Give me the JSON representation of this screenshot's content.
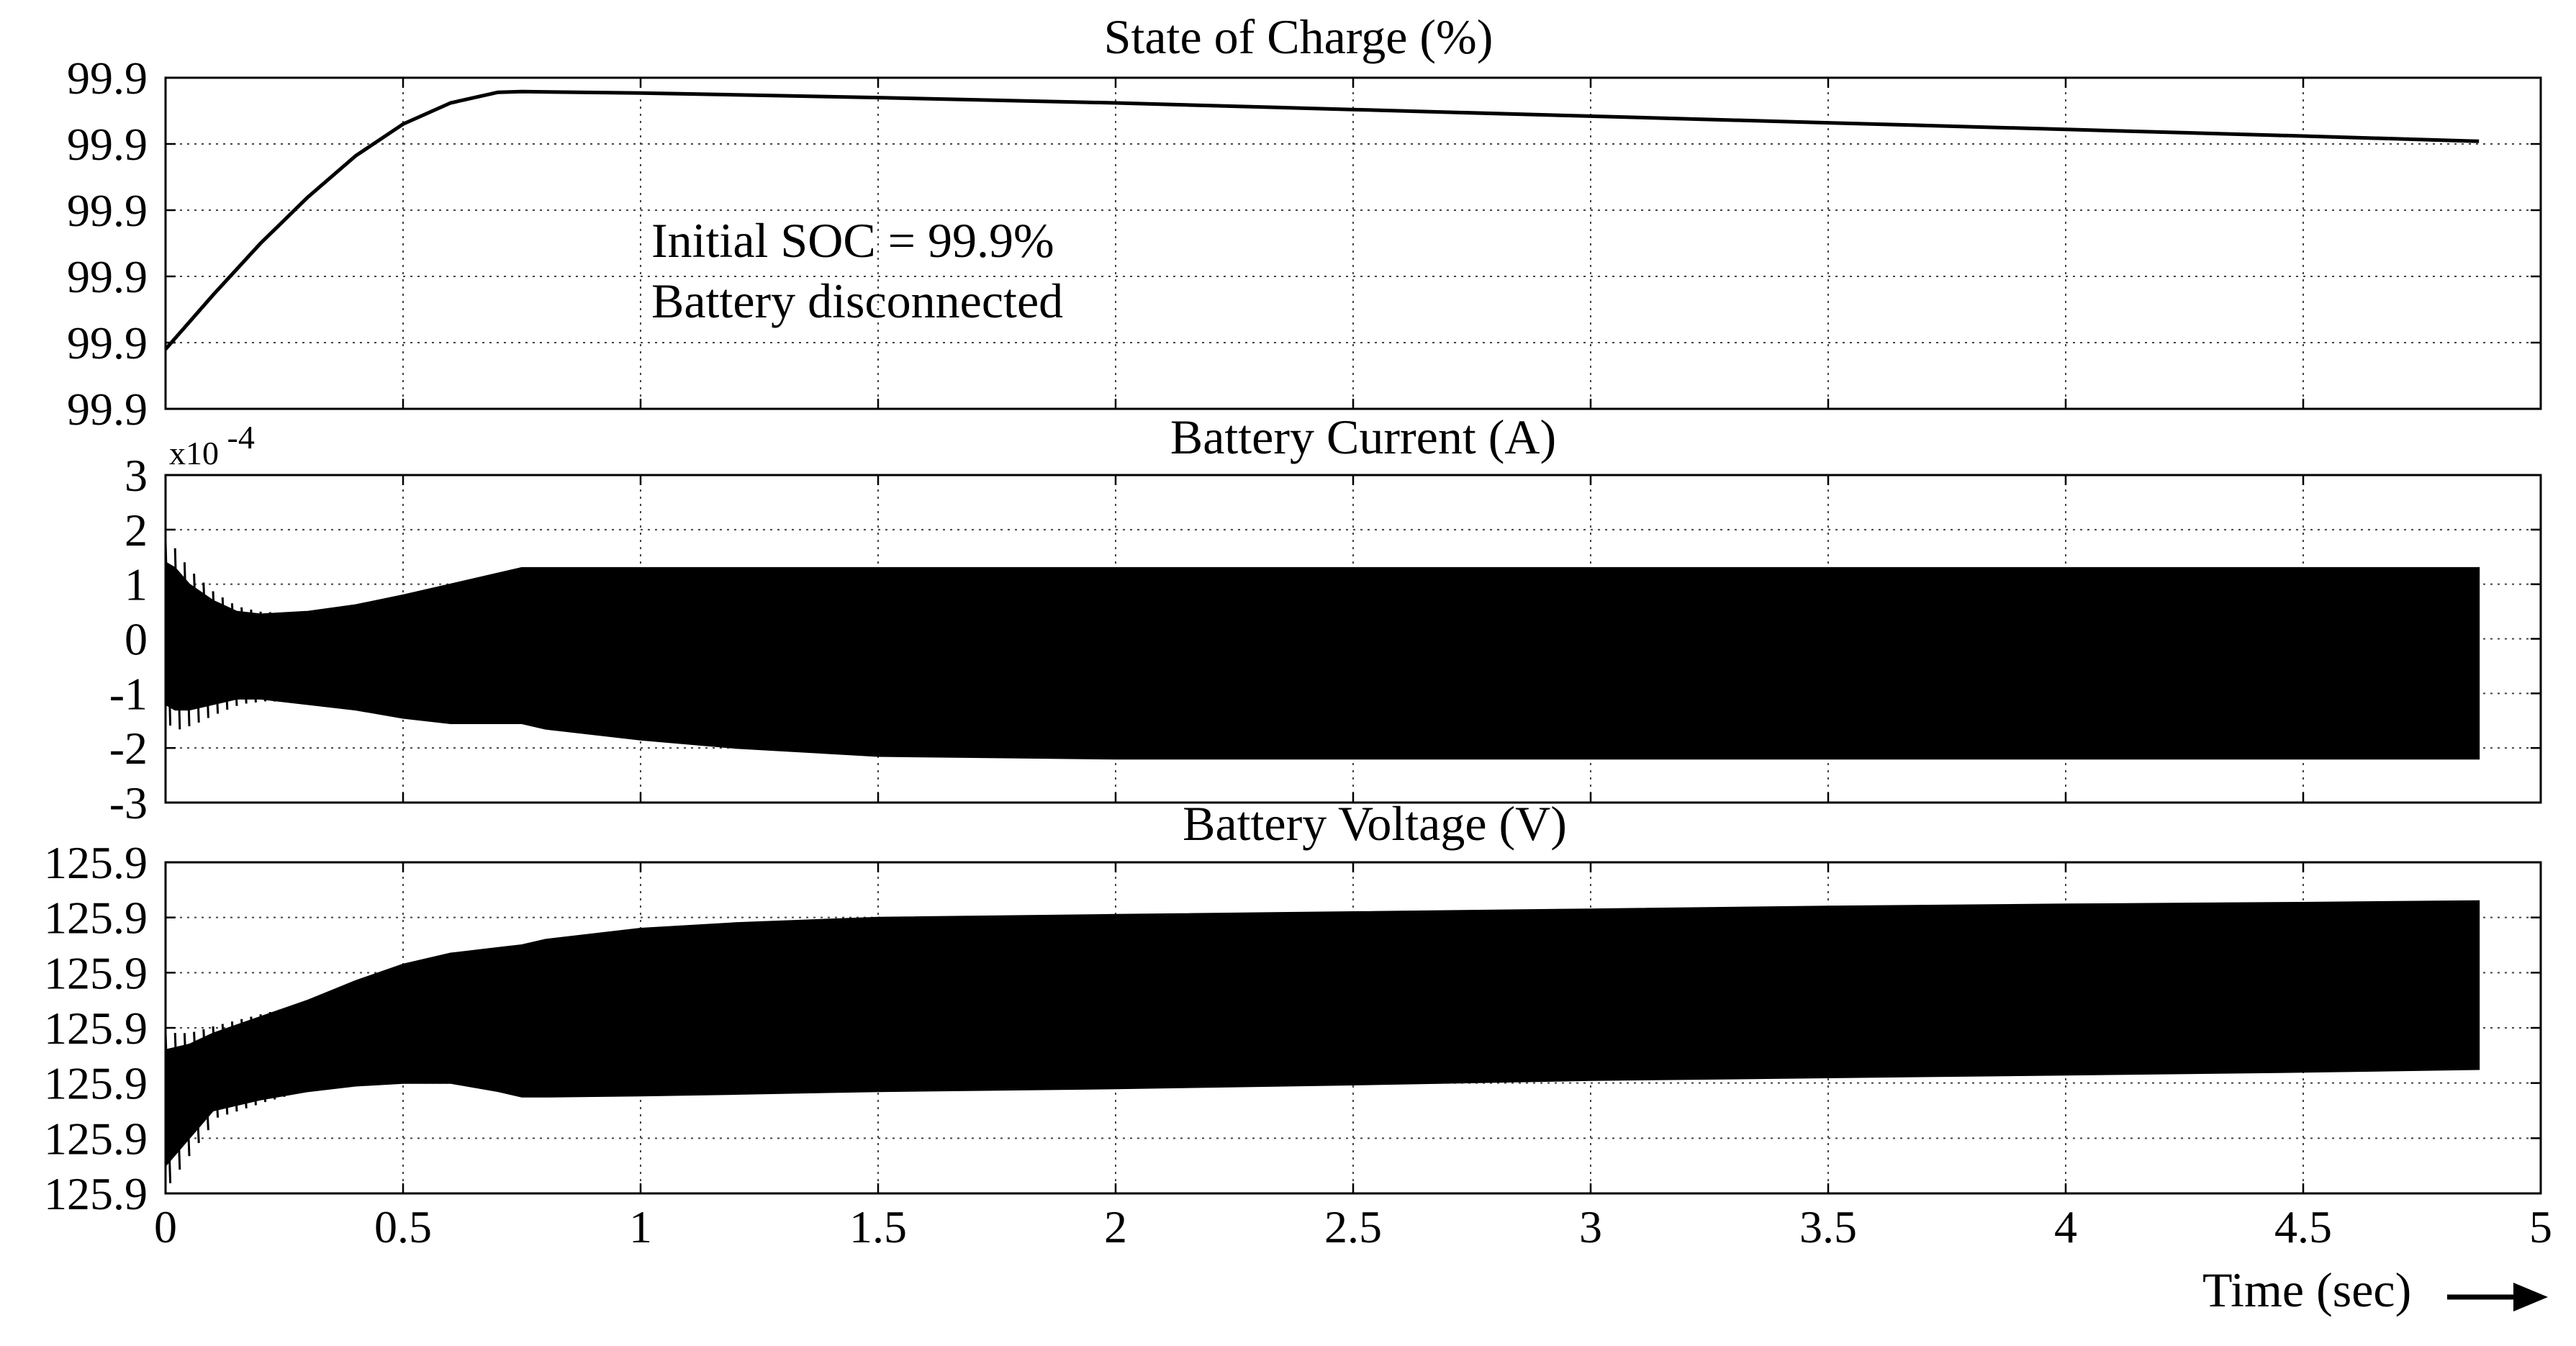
{
  "figure": {
    "xlabel": "Time (sec)",
    "arrow_icon": "right-arrow-icon",
    "xticks": [
      "0",
      "0.5",
      "1",
      "1.5",
      "2",
      "2.5",
      "3",
      "3.5",
      "4",
      "4.5",
      "5"
    ],
    "line_color": "#000000",
    "grid": "dotted"
  },
  "chart_data": [
    {
      "type": "line",
      "title": "State of Charge (%)",
      "xlabel": "Time (sec)",
      "ylabel": "",
      "xlim": [
        0,
        5
      ],
      "ylim": [
        0,
        5
      ],
      "ytick_labels": [
        "99.9",
        "99.9",
        "99.9",
        "99.9",
        "99.9",
        "99.9"
      ],
      "grid": true,
      "annotations": [
        "Initial SOC = 99.9%",
        "Battery disconnected"
      ],
      "series": [
        {
          "x": [
            0,
            0.1,
            0.2,
            0.3,
            0.4,
            0.5,
            0.6,
            0.7,
            0.75,
            1.0,
            1.5,
            2.0,
            2.5,
            3.0,
            3.5,
            4.0,
            4.5,
            4.87
          ],
          "y": [
            0.9,
            1.72,
            2.5,
            3.2,
            3.82,
            4.3,
            4.62,
            4.78,
            4.79,
            4.77,
            4.7,
            4.62,
            4.52,
            4.42,
            4.32,
            4.22,
            4.12,
            4.04
          ],
          "style": "line"
        }
      ]
    },
    {
      "type": "area",
      "title": "Battery Current (A)",
      "xlabel": "Time (sec)",
      "ylabel": "",
      "xlim": [
        0,
        5
      ],
      "ylim": [
        -3,
        3
      ],
      "exponent_label": "x10",
      "exponent_power": "-4",
      "ytick_labels": [
        "3",
        "2",
        "1",
        "0",
        "-1",
        "-2",
        "-3"
      ],
      "grid": true,
      "series": [
        {
          "style": "oscillation-envelope",
          "x": [
            0.0,
            0.02,
            0.05,
            0.1,
            0.15,
            0.2,
            0.3,
            0.4,
            0.5,
            0.6,
            0.7,
            0.75,
            0.8,
            1.0,
            1.2,
            1.5,
            2.0,
            3.0,
            4.0,
            4.87
          ],
          "upper": [
            1.4,
            1.3,
            1.0,
            0.7,
            0.5,
            0.45,
            0.5,
            0.62,
            0.8,
            1.0,
            1.2,
            1.3,
            1.3,
            1.3,
            1.3,
            1.3,
            1.3,
            1.3,
            1.3,
            1.3
          ],
          "lower": [
            -1.2,
            -1.3,
            -1.3,
            -1.2,
            -1.1,
            -1.1,
            -1.2,
            -1.3,
            -1.45,
            -1.55,
            -1.55,
            -1.55,
            -1.65,
            -1.85,
            -2.0,
            -2.15,
            -2.2,
            -2.2,
            -2.2,
            -2.2
          ]
        }
      ]
    },
    {
      "type": "area",
      "title": "Battery Voltage (V)",
      "xlabel": "Time (sec)",
      "ylabel": "",
      "xlim": [
        0,
        5
      ],
      "ylim": [
        0,
        6
      ],
      "ytick_labels": [
        "125.9",
        "125.9",
        "125.9",
        "125.9",
        "125.9",
        "125.9",
        "125.9"
      ],
      "grid": true,
      "series": [
        {
          "style": "oscillation-envelope",
          "x": [
            0.0,
            0.05,
            0.1,
            0.2,
            0.3,
            0.4,
            0.5,
            0.6,
            0.7,
            0.75,
            0.8,
            1.0,
            1.2,
            1.5,
            2.0,
            2.5,
            3.0,
            3.5,
            4.0,
            4.5,
            4.87
          ],
          "upper": [
            2.6,
            2.7,
            2.9,
            3.2,
            3.5,
            3.85,
            4.15,
            4.35,
            4.45,
            4.5,
            4.6,
            4.8,
            4.9,
            5.0,
            5.05,
            5.1,
            5.15,
            5.2,
            5.24,
            5.27,
            5.3
          ],
          "lower": [
            0.5,
            1.0,
            1.5,
            1.7,
            1.85,
            1.95,
            2.0,
            2.0,
            1.85,
            1.75,
            1.75,
            1.77,
            1.8,
            1.85,
            1.9,
            1.97,
            2.05,
            2.1,
            2.15,
            2.2,
            2.25
          ]
        }
      ]
    }
  ]
}
